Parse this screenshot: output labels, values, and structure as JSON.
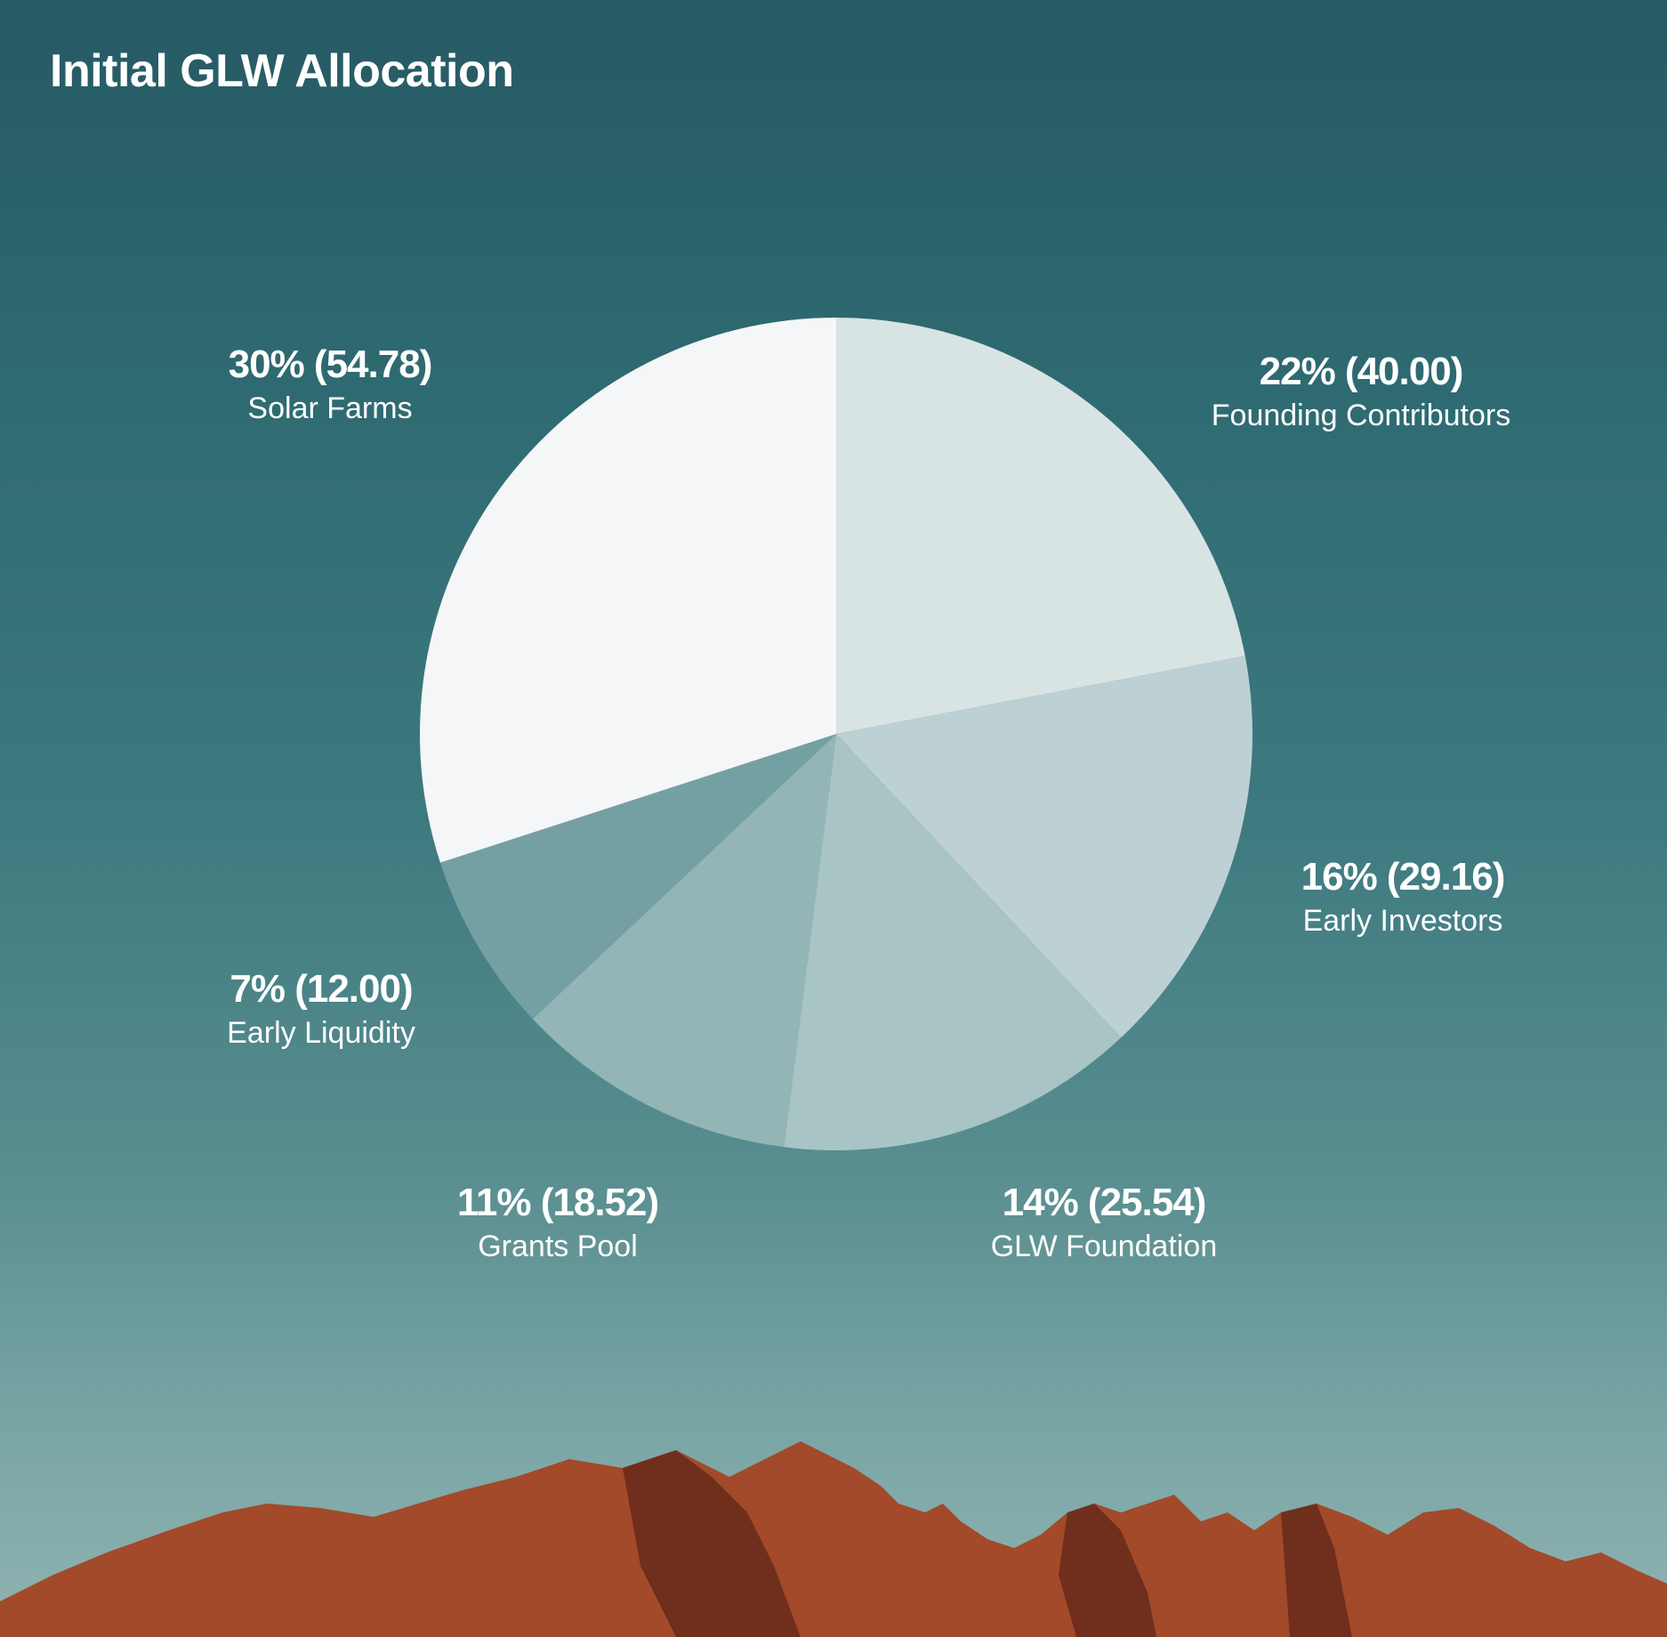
{
  "title": "Initial GLW Allocation",
  "chart_data": {
    "type": "pie",
    "title": "Initial GLW Allocation",
    "slices": [
      {
        "name": "Founding Contributors",
        "percent": 22,
        "amount": "40.00",
        "label": "22% (40.00)",
        "color": "#d8e3e4"
      },
      {
        "name": "Early Investors",
        "percent": 16,
        "amount": "29.16",
        "label": "16% (29.16)",
        "color": "#bdd1d4"
      },
      {
        "name": "GLW Foundation",
        "percent": 14,
        "amount": "25.54",
        "label": "14% (25.54)",
        "color": "#a9c4c5"
      },
      {
        "name": "Grants Pool",
        "percent": 11,
        "amount": "18.52",
        "label": "11% (18.52)",
        "color": "#93b5b6"
      },
      {
        "name": "Early Liquidity",
        "percent": 7,
        "amount": "12.00",
        "label": "7% (12.00)",
        "color": "#75a0a3"
      },
      {
        "name": "Solar Farms",
        "percent": 30,
        "amount": "54.78",
        "label": "30% (54.78)",
        "color": "#f4f6f7"
      }
    ]
  },
  "colors": {
    "mountain": "#a24a2a",
    "mountain_shadow": "#6f2f1c"
  }
}
